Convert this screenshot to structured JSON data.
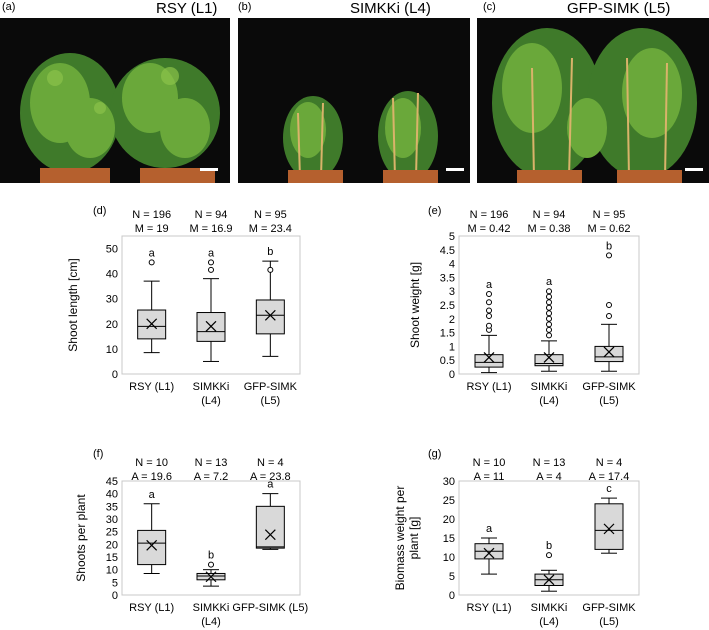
{
  "photos": [
    {
      "letter": "(a)",
      "title": "RSY (L1)"
    },
    {
      "letter": "(b)",
      "title": "SIMKKi (L4)"
    },
    {
      "letter": "(c)",
      "title": "GFP-SIMK (L5)"
    }
  ],
  "chart_data": [
    {
      "panel": "(d)",
      "type": "box",
      "ylabel": "Shoot length [cm]",
      "ylim": [
        0,
        55
      ],
      "yticks": [
        0,
        10,
        20,
        30,
        40,
        50
      ],
      "categories": [
        "RSY (L1)",
        "SIMKKi\n(L4)",
        "GFP-SIMK\n(L5)"
      ],
      "headers": [
        [
          "N = 196",
          "M = 19"
        ],
        [
          "N = 94",
          "M = 16.9"
        ],
        [
          "N = 95",
          "M = 23.4"
        ]
      ],
      "letters": [
        "a",
        "a",
        "b"
      ],
      "boxes": [
        {
          "whisker_low": 8.5,
          "q1": 14,
          "median": 19,
          "q3": 25.5,
          "whisker_high": 37,
          "mean": 20,
          "outliers": [
            44.5
          ]
        },
        {
          "whisker_low": 5,
          "q1": 13,
          "median": 16.9,
          "q3": 24.5,
          "whisker_high": 38,
          "mean": 19,
          "outliers": [
            41.5,
            44.5
          ]
        },
        {
          "whisker_low": 7,
          "q1": 16,
          "median": 23.4,
          "q3": 29.5,
          "whisker_high": 45,
          "mean": 23.4,
          "outliers": [
            41.5
          ]
        }
      ]
    },
    {
      "panel": "(e)",
      "type": "box",
      "ylabel": "Shoot weight [g]",
      "ylim": [
        0,
        5
      ],
      "yticks": [
        0,
        0.5,
        1,
        1.5,
        2,
        2.5,
        3,
        3.5,
        4,
        4.5,
        5
      ],
      "categories": [
        "RSY (L1)",
        "SIMKKi\n(L4)",
        "GFP-SIMK\n(L5)"
      ],
      "headers": [
        [
          "N = 196",
          "M = 0.42"
        ],
        [
          "N = 94",
          "M = 0.38"
        ],
        [
          "N = 95",
          "M = 0.62"
        ]
      ],
      "letters": [
        "a",
        "a",
        "b"
      ],
      "boxes": [
        {
          "whisker_low": 0.05,
          "q1": 0.25,
          "median": 0.42,
          "q3": 0.7,
          "whisker_high": 1.4,
          "mean": 0.6,
          "outliers": [
            1.6,
            1.75,
            2.1,
            2.3,
            2.6,
            2.9
          ]
        },
        {
          "whisker_low": 0.1,
          "q1": 0.3,
          "median": 0.38,
          "q3": 0.7,
          "whisker_high": 1.2,
          "mean": 0.6,
          "outliers": [
            1.4,
            1.6,
            1.8,
            2.0,
            2.2,
            2.4,
            2.6,
            2.8,
            3.0
          ]
        },
        {
          "whisker_low": 0.1,
          "q1": 0.45,
          "median": 0.62,
          "q3": 1.0,
          "whisker_high": 1.8,
          "mean": 0.8,
          "outliers": [
            2.1,
            2.5,
            4.3
          ]
        }
      ]
    },
    {
      "panel": "(f)",
      "type": "box",
      "ylabel": "Shoots per plant",
      "ylim": [
        0,
        45
      ],
      "yticks": [
        0,
        5,
        10,
        15,
        20,
        25,
        30,
        35,
        40,
        45
      ],
      "categories": [
        "RSY (L1)",
        "SIMKKi\n(L4)",
        "GFP-SIMK (L5)"
      ],
      "headers": [
        [
          "N = 10",
          "A = 19.6"
        ],
        [
          "N = 13",
          "A = 7.2"
        ],
        [
          "N = 4",
          "A = 23.8"
        ]
      ],
      "letters": [
        "a",
        "b",
        "a"
      ],
      "boxes": [
        {
          "whisker_low": 8.5,
          "q1": 12,
          "median": 20.5,
          "q3": 25.5,
          "whisker_high": 36,
          "mean": 19.6,
          "outliers": []
        },
        {
          "whisker_low": 3.5,
          "q1": 6,
          "median": 7.5,
          "q3": 8.5,
          "whisker_high": 10,
          "mean": 7.2,
          "outliers": [
            12
          ]
        },
        {
          "whisker_low": 18,
          "q1": 18.5,
          "median": 19,
          "q3": 35,
          "whisker_high": 40,
          "mean": 23.8,
          "outliers": []
        }
      ]
    },
    {
      "panel": "(g)",
      "type": "box",
      "ylabel": "Biomass weight per\nplant [g]",
      "ylim": [
        0,
        30
      ],
      "yticks": [
        0,
        5,
        10,
        15,
        20,
        25,
        30
      ],
      "categories": [
        "RSY (L1)",
        "SIMKKi\n(L4)",
        "GFP-SIMK\n(L5)"
      ],
      "headers": [
        [
          "N = 10",
          "A = 11"
        ],
        [
          "N = 13",
          "A = 4"
        ],
        [
          "N = 4",
          "A = 17.4"
        ]
      ],
      "letters": [
        "a",
        "b",
        "c"
      ],
      "boxes": [
        {
          "whisker_low": 5.5,
          "q1": 9.5,
          "median": 11.5,
          "q3": 13.5,
          "whisker_high": 15,
          "mean": 11,
          "outliers": []
        },
        {
          "whisker_low": 1,
          "q1": 2.5,
          "median": 4,
          "q3": 5.5,
          "whisker_high": 6.5,
          "mean": 4,
          "outliers": [
            10.5
          ]
        },
        {
          "whisker_low": 11,
          "q1": 12,
          "median": 17,
          "q3": 24,
          "whisker_high": 25.5,
          "mean": 17.4,
          "outliers": []
        }
      ]
    }
  ]
}
